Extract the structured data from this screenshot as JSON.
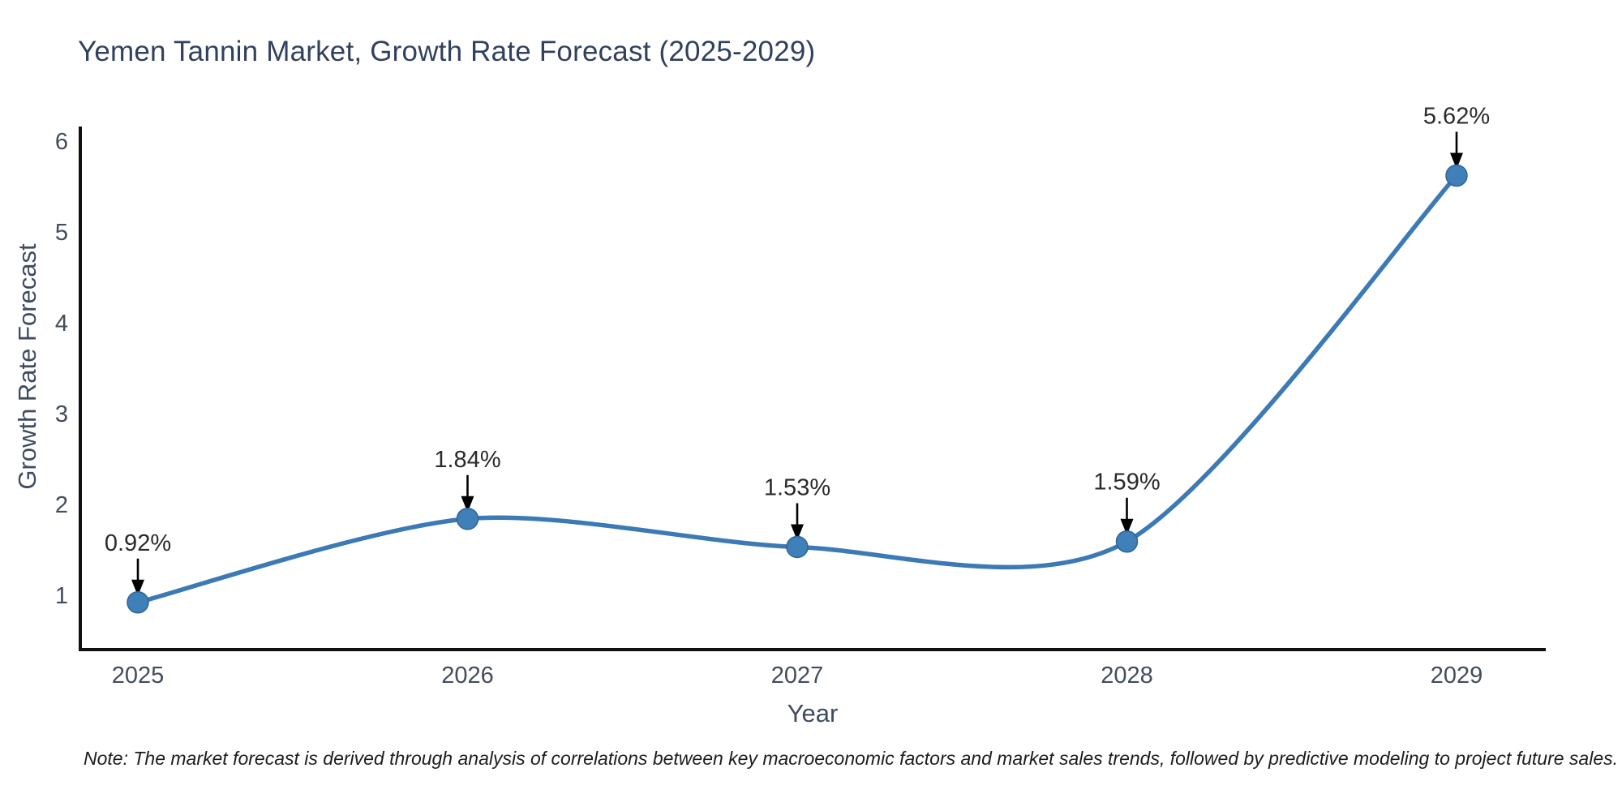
{
  "title": "Yemen Tannin Market, Growth Rate Forecast (2025-2029)",
  "note": "Note: The market forecast is derived through analysis of correlations between key macroeconomic factors and market sales trends, followed by predictive modeling to project future sales.",
  "chart_data": {
    "type": "line",
    "title": "Yemen Tannin Market, Growth Rate Forecast (2025-2029)",
    "xlabel": "Year",
    "ylabel": "Growth Rate Forecast",
    "categories": [
      "2025",
      "2026",
      "2027",
      "2028",
      "2029"
    ],
    "x": [
      2025,
      2026,
      2027,
      2028,
      2029
    ],
    "values": [
      0.92,
      1.84,
      1.53,
      1.59,
      5.62
    ],
    "point_labels": [
      "0.92%",
      "1.84%",
      "1.53%",
      "1.59%",
      "5.62%"
    ],
    "yticks": [
      1,
      2,
      3,
      4,
      5,
      6
    ],
    "ylim": [
      0.4,
      6.16
    ],
    "grid": false,
    "legend": "none",
    "line_shape": "spline",
    "annotations": "black arrows pointing from each percentage label down to its data point",
    "colors": {
      "line": "#3c7ab5",
      "marker": "#4080b8",
      "marker_edge": "#2f6398",
      "arrow": "#000000",
      "axis": "#111111",
      "tick_label": "#424c5c",
      "point_label": "#2a2a2a",
      "title": "#31415d",
      "background": "#ffffff"
    }
  }
}
